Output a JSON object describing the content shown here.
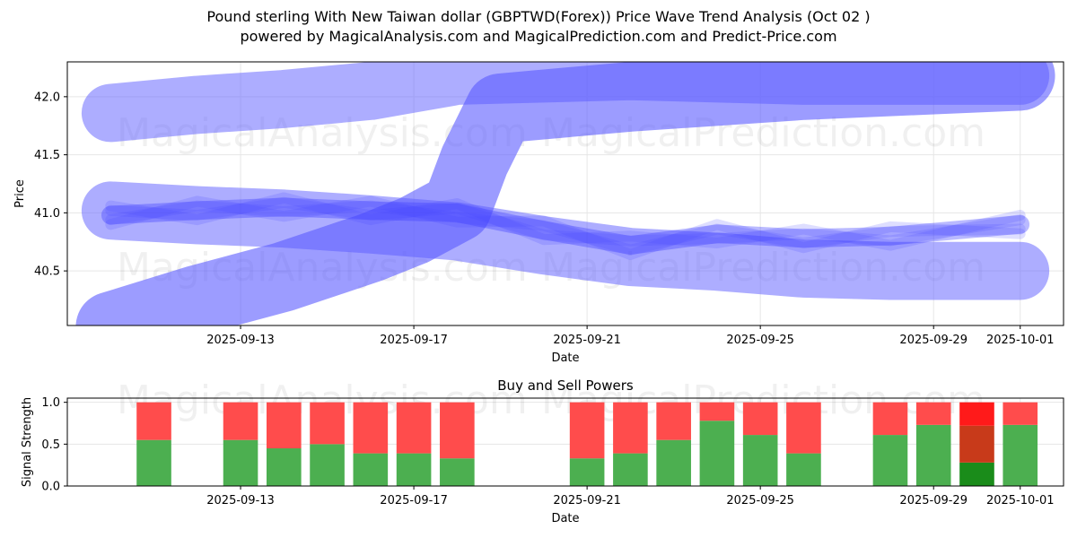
{
  "title": {
    "line1": "Pound sterling With New Taiwan dollar (GBPTWD(Forex)) Price Wave Trend Analysis (Oct 02 )",
    "line2": "powered by MagicalAnalysis.com and MagicalPrediction.com and Predict-Price.com"
  },
  "watermarks": [
    "MagicalAnalysis.com",
    "MagicalPrediction.com"
  ],
  "chart_data": [
    {
      "type": "line",
      "name": "price-wave-trend",
      "title": "",
      "xlabel": "Date",
      "ylabel": "Price",
      "xlim": [
        "2025-09-09",
        "2025-10-02"
      ],
      "ylim": [
        40.03,
        42.3
      ],
      "yticks": [
        40.5,
        41.0,
        41.5,
        42.0
      ],
      "xticks": [
        "2025-09-13",
        "2025-09-17",
        "2025-09-21",
        "2025-09-25",
        "2025-09-29",
        "2025-10-01"
      ],
      "grid": true,
      "bands": [
        {
          "name": "upper-wide-band",
          "x": [
            "2025-09-10",
            "2025-09-12",
            "2025-09-14",
            "2025-09-16",
            "2025-09-18",
            "2025-09-22",
            "2025-09-26",
            "2025-10-01"
          ],
          "y": [
            41.86,
            41.93,
            41.98,
            42.05,
            42.18,
            42.22,
            42.18,
            42.18
          ],
          "width": 0.5,
          "color": "#6a6aff",
          "opacity": 0.55
        },
        {
          "name": "lower-wide-band",
          "x": [
            "2025-09-10",
            "2025-09-12",
            "2025-09-14",
            "2025-09-16",
            "2025-09-18",
            "2025-09-20",
            "2025-09-22",
            "2025-09-24",
            "2025-09-26",
            "2025-09-28",
            "2025-10-01"
          ],
          "y": [
            41.02,
            40.98,
            40.95,
            40.9,
            40.84,
            40.72,
            40.62,
            40.58,
            40.52,
            40.5,
            40.5
          ],
          "width": 0.5,
          "color": "#6a6aff",
          "opacity": 0.55
        },
        {
          "name": "rising-band",
          "x": [
            "2025-09-10",
            "2025-09-12",
            "2025-09-14",
            "2025-09-16",
            "2025-09-17",
            "2025-09-18",
            "2025-09-18.4",
            "2025-09-19",
            "2025-09-22",
            "2025-09-26",
            "2025-10-01"
          ],
          "y": [
            40.02,
            40.25,
            40.45,
            40.7,
            40.85,
            41.05,
            41.45,
            41.9,
            42.0,
            42.1,
            42.18
          ],
          "width": 0.6,
          "color": "#5a5aff",
          "opacity": 0.6
        },
        {
          "name": "core-band",
          "x": [
            "2025-09-10",
            "2025-09-12",
            "2025-09-14",
            "2025-09-16",
            "2025-09-18",
            "2025-09-20",
            "2025-09-22",
            "2025-09-24",
            "2025-09-26",
            "2025-09-28",
            "2025-10-01"
          ],
          "y": [
            40.98,
            41.02,
            41.05,
            41.02,
            41.0,
            40.85,
            40.72,
            40.82,
            40.78,
            40.8,
            40.9
          ],
          "width": 0.16,
          "color": "#3a3aff",
          "opacity": 0.35
        }
      ]
    },
    {
      "type": "bar",
      "name": "buy-and-sell-powers",
      "title": "Buy and Sell Powers",
      "xlabel": "Date",
      "ylabel": "Signal Strength",
      "xlim": [
        "2025-09-09",
        "2025-10-02"
      ],
      "ylim": [
        0,
        1.05
      ],
      "yticks": [
        0.0,
        0.5,
        1.0
      ],
      "xticks": [
        "2025-09-13",
        "2025-09-17",
        "2025-09-21",
        "2025-09-25",
        "2025-09-29",
        "2025-10-01"
      ],
      "grid": true,
      "categories": [
        "2025-09-11",
        "2025-09-13",
        "2025-09-14",
        "2025-09-15",
        "2025-09-16",
        "2025-09-17",
        "2025-09-18",
        "2025-09-21",
        "2025-09-22",
        "2025-09-23",
        "2025-09-24",
        "2025-09-25",
        "2025-09-26",
        "2025-09-28",
        "2025-09-29",
        "2025-09-30",
        "2025-10-01"
      ],
      "series": [
        {
          "name": "Buy",
          "color": "#4caf50",
          "values": [
            0.55,
            0.55,
            0.45,
            0.5,
            0.39,
            0.39,
            0.33,
            0.33,
            0.39,
            0.55,
            0.78,
            0.61,
            0.39,
            0.61,
            0.73,
            0.28,
            0.73
          ]
        },
        {
          "name": "Sell",
          "color": "#ff4c4c",
          "values": [
            0.45,
            0.45,
            0.55,
            0.5,
            0.61,
            0.61,
            0.67,
            0.67,
            0.61,
            0.45,
            0.22,
            0.39,
            0.61,
            0.39,
            0.27,
            0.72,
            0.27
          ]
        }
      ],
      "highlight": {
        "category": "2025-09-30",
        "buy_color": "#1a8c1a",
        "sell_color": "#ff1a1a",
        "mid_color": "#c83a1a"
      }
    }
  ]
}
